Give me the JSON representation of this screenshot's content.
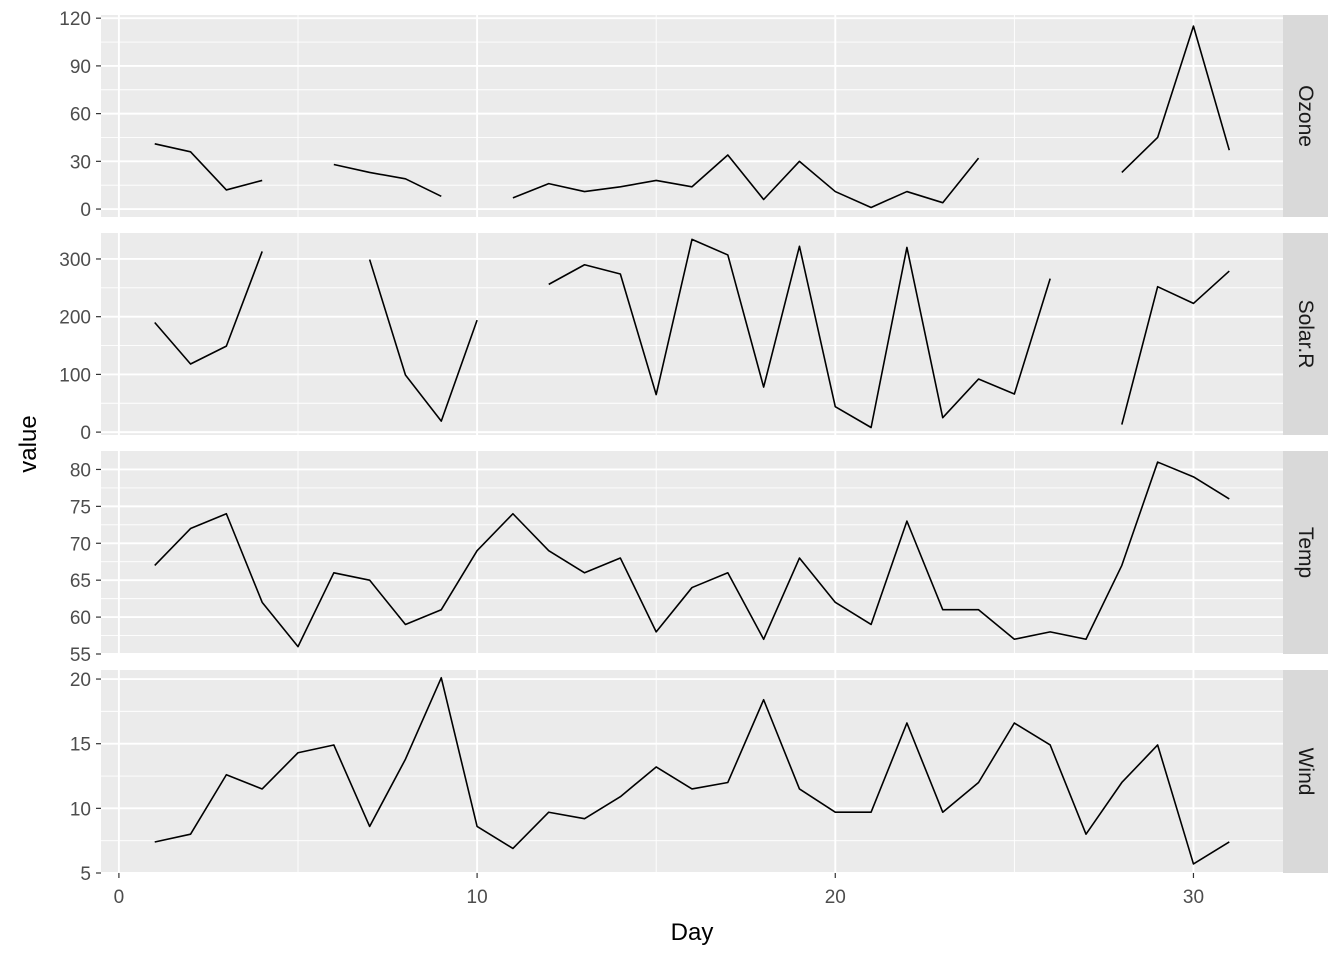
{
  "chart_data": {
    "type": "line",
    "layout": "facet_grid_rows",
    "xlabel": "Day",
    "ylabel": "value",
    "xlim": [
      -0.5,
      32.5
    ],
    "x_ticks": [
      0,
      10,
      20,
      30
    ],
    "x_tick_labels": [
      "0",
      "10",
      "20",
      "30"
    ],
    "x": [
      1,
      2,
      3,
      4,
      5,
      6,
      7,
      8,
      9,
      10,
      11,
      12,
      13,
      14,
      15,
      16,
      17,
      18,
      19,
      20,
      21,
      22,
      23,
      24,
      25,
      26,
      27,
      28,
      29,
      30,
      31
    ],
    "colors": {
      "panel": "#EBEBEB",
      "grid_major": "#FFFFFF",
      "strip": "#D9D9D9",
      "line": "#000000",
      "tick_text": "#4D4D4D"
    },
    "grid": true,
    "facets": [
      {
        "strip": "Ozone",
        "ylim": [
          -5,
          122
        ],
        "y_ticks": [
          0,
          30,
          60,
          90,
          120
        ],
        "y_tick_labels": [
          "0",
          "30",
          "60",
          "90",
          "120"
        ],
        "values": [
          41,
          36,
          12,
          18,
          null,
          28,
          23,
          19,
          8,
          null,
          7,
          16,
          11,
          14,
          18,
          14,
          34,
          6,
          30,
          11,
          1,
          11,
          4,
          32,
          null,
          null,
          null,
          23,
          45,
          115,
          37
        ]
      },
      {
        "strip": "Solar.R",
        "ylim": [
          -5,
          345
        ],
        "y_ticks": [
          0,
          100,
          200,
          300
        ],
        "y_tick_labels": [
          "0",
          "100",
          "200",
          "300"
        ],
        "values": [
          190,
          118,
          149,
          313,
          null,
          null,
          299,
          99,
          19,
          194,
          null,
          256,
          290,
          274,
          65,
          334,
          307,
          78,
          322,
          44,
          8,
          320,
          25,
          92,
          66,
          266,
          null,
          13,
          252,
          223,
          279
        ]
      },
      {
        "strip": "Temp",
        "ylim": [
          55,
          82.5
        ],
        "y_ticks": [
          55,
          60,
          65,
          70,
          75,
          80
        ],
        "y_tick_labels": [
          "55",
          "60",
          "65",
          "70",
          "75",
          "80"
        ],
        "values": [
          67,
          72,
          74,
          62,
          56,
          66,
          65,
          59,
          61,
          69,
          74,
          69,
          66,
          68,
          58,
          64,
          66,
          57,
          68,
          62,
          59,
          73,
          61,
          61,
          57,
          58,
          57,
          67,
          81,
          79,
          76
        ]
      },
      {
        "strip": "Wind",
        "ylim": [
          5,
          20.7
        ],
        "y_ticks": [
          5,
          10,
          15,
          20
        ],
        "y_tick_labels": [
          "5",
          "10",
          "15",
          "20"
        ],
        "values": [
          7.4,
          8.0,
          12.6,
          11.5,
          14.3,
          14.9,
          8.6,
          13.8,
          20.1,
          8.6,
          6.9,
          9.7,
          9.2,
          10.9,
          13.2,
          11.5,
          12.0,
          18.4,
          11.5,
          9.7,
          9.7,
          16.6,
          9.7,
          12.0,
          16.6,
          14.9,
          8.0,
          12.0,
          14.9,
          5.7,
          7.4
        ]
      }
    ]
  }
}
